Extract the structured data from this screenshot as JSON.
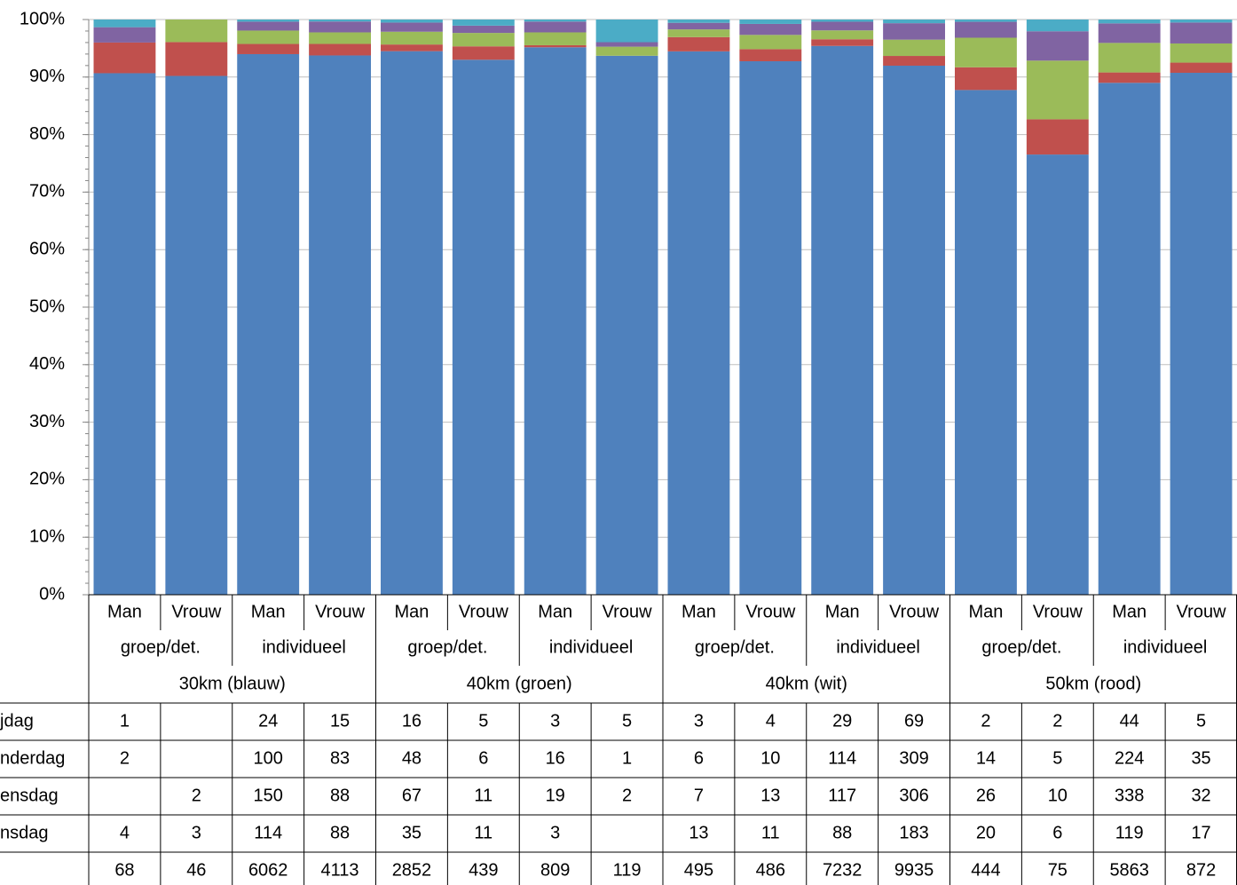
{
  "chart_data": {
    "type": "bar",
    "stacked": "percent",
    "categories": [
      "Man",
      "Vrouw",
      "Man",
      "Vrouw",
      "Man",
      "Vrouw",
      "Man",
      "Vrouw",
      "Man",
      "Vrouw",
      "Man",
      "Vrouw",
      "Man",
      "Vrouw",
      "Man",
      "Vrouw"
    ],
    "subgroups": [
      "groep/det.",
      "individueel",
      "groep/det.",
      "individueel",
      "groep/det.",
      "individueel",
      "groep/det.",
      "individueel"
    ],
    "groups": [
      "30km (blauw)",
      "40km (groen)",
      "40km (wit)",
      "50km (rood)"
    ],
    "series": [
      {
        "name": "jdag",
        "color": "#4bacc6",
        "values": [
          1,
          null,
          24,
          15,
          16,
          5,
          3,
          5,
          3,
          4,
          29,
          69,
          2,
          2,
          44,
          5
        ]
      },
      {
        "name": "nderdag",
        "color": "#8064a2",
        "values": [
          2,
          null,
          100,
          83,
          48,
          6,
          16,
          1,
          6,
          10,
          114,
          309,
          14,
          5,
          224,
          35
        ]
      },
      {
        "name": "ensdag",
        "color": "#9bbb59",
        "values": [
          null,
          2,
          150,
          88,
          67,
          11,
          19,
          2,
          7,
          13,
          117,
          306,
          26,
          10,
          338,
          32
        ]
      },
      {
        "name": "nsdag",
        "color": "#c0504d",
        "values": [
          4,
          3,
          114,
          88,
          35,
          11,
          3,
          null,
          13,
          11,
          88,
          183,
          20,
          6,
          119,
          17
        ]
      },
      {
        "name": null,
        "color": "#4f81bd",
        "values": [
          68,
          46,
          6062,
          4113,
          2852,
          439,
          809,
          119,
          495,
          486,
          7232,
          9935,
          444,
          75,
          5863,
          872
        ]
      }
    ],
    "ylim": [
      0,
      100
    ],
    "yticks": [
      {
        "value": 0,
        "label": "0%"
      },
      {
        "value": 10,
        "label": "10%"
      },
      {
        "value": 20,
        "label": "20%"
      },
      {
        "value": 30,
        "label": "30%"
      },
      {
        "value": 40,
        "label": "40%"
      },
      {
        "value": 50,
        "label": "50%"
      },
      {
        "value": 60,
        "label": "60%"
      },
      {
        "value": 70,
        "label": "70%"
      },
      {
        "value": 80,
        "label": "80%"
      },
      {
        "value": 90,
        "label": "90%"
      },
      {
        "value": 100,
        "label": "100%"
      }
    ],
    "grid": true
  }
}
